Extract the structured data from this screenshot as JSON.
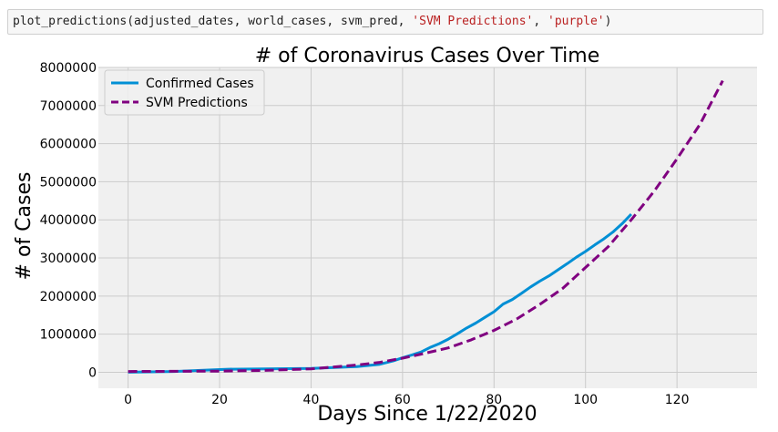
{
  "code_cell": {
    "prefix": "plot_predictions(adjusted_dates, world_cases, svm_pred, ",
    "arg_label": "'SVM Predictions'",
    "sep": ", ",
    "arg_color": "'purple'",
    "suffix": ")"
  },
  "chart_data": {
    "type": "line",
    "title": "# of Coronavirus Cases Over Time",
    "xlabel": "Days Since 1/22/2020",
    "ylabel": "# of Cases",
    "xlim": [
      -6.5,
      137.5
    ],
    "ylim": [
      -420000,
      8000000
    ],
    "xticks": [
      0,
      20,
      40,
      60,
      80,
      100,
      120
    ],
    "xtick_labels": [
      "0",
      "20",
      "40",
      "60",
      "80",
      "100",
      "120"
    ],
    "yticks": [
      0,
      1000000,
      2000000,
      3000000,
      4000000,
      5000000,
      6000000,
      7000000,
      8000000
    ],
    "ytick_labels": [
      "0",
      "1000000",
      "2000000",
      "3000000",
      "4000000",
      "5000000",
      "6000000",
      "7000000",
      "8000000"
    ],
    "grid": true,
    "legend_position": "top-left",
    "background": "#f0f0f0",
    "series": [
      {
        "name": "Confirmed Cases",
        "color": "#008fd5",
        "style": "solid",
        "x": [
          0,
          10,
          20,
          22,
          30,
          40,
          50,
          55,
          58,
          60,
          62,
          64,
          66,
          68,
          70,
          72,
          74,
          76,
          78,
          80,
          82,
          84,
          86,
          88,
          90,
          92,
          94,
          96,
          98,
          100,
          102,
          104,
          106,
          108,
          110
        ],
        "y": [
          555,
          20000,
          70000,
          80000,
          90000,
          100000,
          150000,
          210000,
          300000,
          380000,
          450000,
          530000,
          650000,
          750000,
          870000,
          1010000,
          1160000,
          1290000,
          1440000,
          1590000,
          1790000,
          1910000,
          2070000,
          2240000,
          2390000,
          2530000,
          2690000,
          2850000,
          3020000,
          3170000,
          3340000,
          3500000,
          3680000,
          3900000,
          4150000
        ]
      },
      {
        "name": "SVM Predictions",
        "color": "#800080",
        "style": "dashed",
        "x": [
          0,
          10,
          20,
          30,
          40,
          50,
          55,
          60,
          65,
          70,
          75,
          80,
          85,
          90,
          95,
          100,
          105,
          110,
          115,
          120,
          125,
          130
        ],
        "y": [
          20000,
          25000,
          30000,
          50000,
          90000,
          190000,
          260000,
          370000,
          500000,
          640000,
          850000,
          1100000,
          1400000,
          1780000,
          2200000,
          2750000,
          3300000,
          4000000,
          4750000,
          5600000,
          6500000,
          7650000
        ]
      }
    ]
  }
}
